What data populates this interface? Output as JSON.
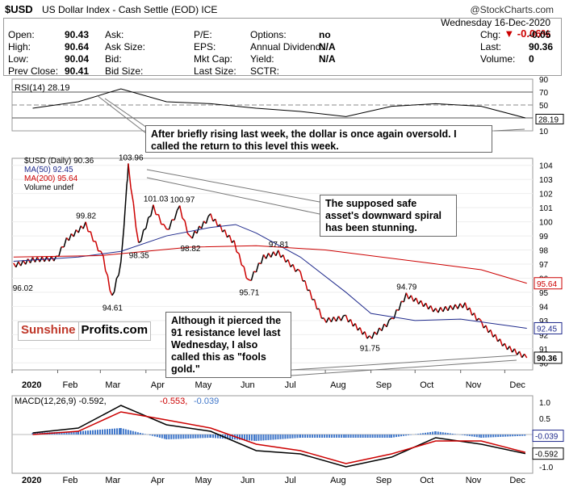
{
  "header": {
    "symbol": "$USD",
    "name": "US Dollar Index - Cash Settle (EOD) ICE",
    "copyright": "@StockCharts.com",
    "date": "Wednesday  16-Dec-2020",
    "change_pct": "▼ -0.06%",
    "quote": [
      {
        "l1": "Open:",
        "v1": "90.43",
        "l2": "Ask:",
        "v2": "",
        "l3": "P/E:",
        "v3": "",
        "l4": "Options:",
        "v4": "no",
        "l5": "Chg:",
        "v5": "-0.05"
      },
      {
        "l1": "High:",
        "v1": "90.64",
        "l2": "Ask Size:",
        "v2": "",
        "l3": "EPS:",
        "v3": "",
        "l4": "Annual Dividend:",
        "v4": "N/A",
        "l5": "Last:",
        "v5": "90.36"
      },
      {
        "l1": "Low:",
        "v1": "90.04",
        "l2": "Bid:",
        "v2": "",
        "l3": "Mkt Cap:",
        "v3": "",
        "l4": "Yield:",
        "v4": "N/A",
        "l5": "Volume:",
        "v5": "0"
      },
      {
        "l1": "Prev Close:",
        "v1": "90.41",
        "l2": "Bid Size:",
        "v2": "",
        "l3": "Last Size:",
        "v3": "",
        "l4": "SCTR:",
        "v4": "",
        "l5": "",
        "": "",
        "v5": ""
      }
    ]
  },
  "annotations": {
    "rsi_note": "After briefly rising last week, the dollar is once again oversold. I called the return to this level this week.",
    "safe_note": "The supposed safe asset's downward spiral has been stunning.",
    "gold_note": "Although it pierced the 91 resistance level last Wednesday, I also called this as \"fools gold.\"",
    "logo_part1": "Sunshine",
    "logo_part2": "Profits.com"
  },
  "colors": {
    "up": "#000000",
    "down": "#cc0000",
    "ma50": "#1f2a8c",
    "ma200": "#cc0000",
    "rsi": "#000000",
    "macd": "#000000",
    "signal": "#cc0000",
    "hist": "#3f76c9",
    "badge_red": "#cc0000",
    "badge_blue": "#1f2a8c"
  },
  "chart_data": [
    {
      "type": "line",
      "panel": "rsi",
      "title": "RSI(14) 28.19",
      "last": 28.19,
      "ylim": [
        10,
        90
      ],
      "yticks": [
        90,
        70,
        50,
        30,
        10
      ],
      "x": [
        "2020-01",
        "2020-02",
        "2020-03",
        "2020-04",
        "2020-05",
        "2020-06",
        "2020-07",
        "2020-08",
        "2020-09",
        "2020-10",
        "2020-11",
        "2020-12"
      ],
      "series": [
        {
          "name": "RSI(14)",
          "values": [
            45,
            55,
            75,
            55,
            52,
            45,
            40,
            32,
            48,
            52,
            48,
            30
          ]
        }
      ]
    },
    {
      "type": "line",
      "panel": "price",
      "title": "$USD (Daily) 90.36",
      "ylim": [
        89.5,
        104.5
      ],
      "yticks": [
        104,
        103,
        102,
        101,
        100,
        99,
        98,
        97,
        96,
        95,
        94,
        93,
        92,
        91,
        90
      ],
      "x_ticks": [
        "2020",
        "Feb",
        "Mar",
        "Apr",
        "May",
        "Jun",
        "Jul",
        "Aug",
        "Sep",
        "Oct",
        "Nov",
        "Dec"
      ],
      "price_points": [
        [
          "2020-01-02",
          96.9
        ],
        [
          "2020-01-15",
          97.3
        ],
        [
          "2020-01-31",
          97.4
        ],
        [
          "2020-02-07",
          98.7
        ],
        [
          "2020-02-20",
          99.82
        ],
        [
          "2020-03-03",
          97.4
        ],
        [
          "2020-03-09",
          94.61
        ],
        [
          "2020-03-15",
          97.0
        ],
        [
          "2020-03-19",
          102.5
        ],
        [
          "2020-03-20",
          103.96
        ],
        [
          "2020-03-27",
          98.35
        ],
        [
          "2020-04-06",
          101.03
        ],
        [
          "2020-04-15",
          99.3
        ],
        [
          "2020-04-24",
          100.97
        ],
        [
          "2020-05-01",
          98.82
        ],
        [
          "2020-05-15",
          100.4
        ],
        [
          "2020-05-31",
          98.5
        ],
        [
          "2020-06-10",
          95.71
        ],
        [
          "2020-06-20",
          97.5
        ],
        [
          "2020-06-30",
          97.81
        ],
        [
          "2020-07-15",
          96.3
        ],
        [
          "2020-07-31",
          93.0
        ],
        [
          "2020-08-15",
          93.2
        ],
        [
          "2020-08-31",
          91.75
        ],
        [
          "2020-09-15",
          93.0
        ],
        [
          "2020-09-25",
          94.79
        ],
        [
          "2020-10-15",
          93.7
        ],
        [
          "2020-11-04",
          94.1
        ],
        [
          "2020-11-15",
          92.8
        ],
        [
          "2020-12-01",
          91.2
        ],
        [
          "2020-12-16",
          90.36
        ]
      ],
      "labels": [
        {
          "text": "96.02",
          "date": "2020-01-08",
          "value": 96.02
        },
        {
          "text": "99.82",
          "date": "2020-02-20",
          "value": 99.82
        },
        {
          "text": "94.61",
          "date": "2020-03-09",
          "value": 94.61
        },
        {
          "text": "103.96",
          "date": "2020-03-20",
          "value": 103.96
        },
        {
          "text": "98.35",
          "date": "2020-03-27",
          "value": 98.35
        },
        {
          "text": "101.03",
          "date": "2020-04-06",
          "value": 101.03
        },
        {
          "text": "100.97",
          "date": "2020-04-24",
          "value": 100.97
        },
        {
          "text": "98.82",
          "date": "2020-05-01",
          "value": 98.82
        },
        {
          "text": "95.71",
          "date": "2020-06-10",
          "value": 95.71
        },
        {
          "text": "97.81",
          "date": "2020-06-30",
          "value": 97.81
        },
        {
          "text": "91.75",
          "date": "2020-08-31",
          "value": 91.75
        },
        {
          "text": "94.79",
          "date": "2020-09-25",
          "value": 94.79
        }
      ],
      "ma50": [
        [
          "2020-01-02",
          97.2
        ],
        [
          "2020-02-15",
          97.5
        ],
        [
          "2020-03-15",
          97.9
        ],
        [
          "2020-04-15",
          99.0
        ],
        [
          "2020-05-15",
          99.6
        ],
        [
          "2020-06-01",
          99.8
        ],
        [
          "2020-06-15",
          99.2
        ],
        [
          "2020-07-15",
          97.5
        ],
        [
          "2020-08-15",
          95.0
        ],
        [
          "2020-09-01",
          93.5
        ],
        [
          "2020-10-01",
          93.0
        ],
        [
          "2020-11-01",
          93.1
        ],
        [
          "2020-12-16",
          92.45
        ]
      ],
      "ma200": [
        [
          "2020-01-02",
          97.5
        ],
        [
          "2020-03-01",
          97.6
        ],
        [
          "2020-05-01",
          98.2
        ],
        [
          "2020-06-15",
          98.3
        ],
        [
          "2020-08-01",
          98.0
        ],
        [
          "2020-10-01",
          97.2
        ],
        [
          "2020-11-15",
          96.6
        ],
        [
          "2020-12-16",
          95.64
        ]
      ],
      "badges": [
        {
          "text": "95.64",
          "value": 95.64,
          "color": "red"
        },
        {
          "text": "92.45",
          "value": 92.45,
          "color": "blue"
        },
        {
          "text": "90.36",
          "value": 90.36,
          "color": "black"
        }
      ],
      "legend": [
        "$USD (Daily) 90.36",
        "MA(50) 92.45",
        "MA(200) 95.64",
        "Volume undef"
      ]
    },
    {
      "type": "line",
      "panel": "macd",
      "title": "MACD(12,26,9) -0.592, -0.553, -0.039",
      "legend_parts": [
        "MACD(12,26,9) -0.592,",
        "-0.553,",
        "-0.039"
      ],
      "ylim": [
        -1.2,
        1.2
      ],
      "yticks": [
        1.0,
        0.5,
        0.0,
        -0.5,
        -1.0
      ],
      "badges": [
        {
          "text": "-0.039",
          "value": -0.039,
          "color": "blue"
        },
        {
          "text": "-0.592",
          "value": -0.592,
          "color": "black"
        }
      ],
      "x": [
        "2020-01",
        "2020-02",
        "2020-03",
        "2020-04",
        "2020-05",
        "2020-06",
        "2020-07",
        "2020-08",
        "2020-09",
        "2020-10",
        "2020-11",
        "2020-12"
      ],
      "series": [
        {
          "name": "MACD",
          "values": [
            0.05,
            0.2,
            0.9,
            0.3,
            0.1,
            -0.5,
            -0.6,
            -1.0,
            -0.7,
            -0.1,
            -0.3,
            -0.592
          ]
        },
        {
          "name": "Signal",
          "values": [
            0.0,
            0.1,
            0.7,
            0.45,
            0.2,
            -0.3,
            -0.5,
            -0.9,
            -0.6,
            -0.2,
            -0.2,
            -0.553
          ]
        },
        {
          "name": "Histogram",
          "values": [
            0.05,
            0.1,
            0.2,
            -0.15,
            -0.1,
            -0.2,
            -0.1,
            -0.1,
            -0.1,
            0.1,
            -0.1,
            -0.039
          ]
        }
      ]
    }
  ]
}
